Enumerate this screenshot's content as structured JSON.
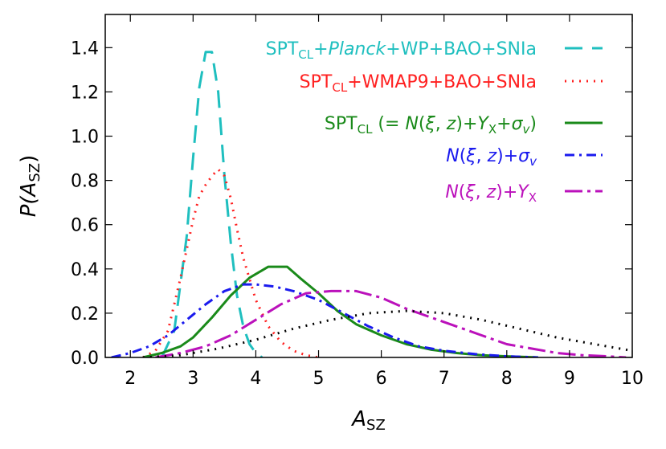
{
  "chart_data": {
    "type": "line",
    "xlabel": "A",
    "xlabel_sub": "SZ",
    "ylabel": "P(A",
    "ylabel_sub": "SZ",
    "ylabel_close": ")",
    "xlim": [
      1.6,
      10
    ],
    "ylim": [
      0,
      1.55
    ],
    "grid": false,
    "legend_position": "top-right",
    "x_ticks": [
      2,
      3,
      4,
      5,
      6,
      7,
      8,
      9,
      10
    ],
    "y_ticks": [
      0.0,
      0.2,
      0.4,
      0.6,
      0.8,
      1.0,
      1.2,
      1.4
    ],
    "x_tick_labels": [
      "2",
      "3",
      "4",
      "5",
      "6",
      "7",
      "8",
      "9",
      "10"
    ],
    "y_tick_labels": [
      "0.0",
      "0.2",
      "0.4",
      "0.6",
      "0.8",
      "1.0",
      "1.2",
      "1.4"
    ],
    "series": [
      {
        "name": "SPT_CL+Planck+WP+BAO+SNIa",
        "legend_parts": [
          {
            "t": "SPT",
            "s": "n"
          },
          {
            "t": "CL",
            "s": "sub"
          },
          {
            "t": "+",
            "s": "n"
          },
          {
            "t": "Planck",
            "s": "i"
          },
          {
            "t": "+WP+BAO+SNIa",
            "s": "n"
          }
        ],
        "color": "#1fbfbf",
        "dash": "22,12",
        "x": [
          2.5,
          2.7,
          2.9,
          3.0,
          3.1,
          3.2,
          3.3,
          3.4,
          3.5,
          3.6,
          3.7,
          3.8,
          3.9,
          4.0,
          4.1
        ],
        "y": [
          0.0,
          0.12,
          0.55,
          0.9,
          1.22,
          1.38,
          1.38,
          1.2,
          0.82,
          0.52,
          0.28,
          0.14,
          0.06,
          0.02,
          0.0
        ]
      },
      {
        "name": "SPT_CL+WMAP9+BAO+SNIa",
        "legend_parts": [
          {
            "t": "SPT",
            "s": "n"
          },
          {
            "t": "CL",
            "s": "sub"
          },
          {
            "t": "+WMAP9+BAO+SNIa",
            "s": "n"
          }
        ],
        "color": "#ff2020",
        "dash": "2,7",
        "x": [
          2.2,
          2.4,
          2.6,
          2.8,
          3.0,
          3.1,
          3.2,
          3.3,
          3.4,
          3.5,
          3.6,
          3.7,
          3.8,
          4.0,
          4.2,
          4.4,
          4.6,
          4.8,
          5.0
        ],
        "y": [
          0.0,
          0.03,
          0.12,
          0.36,
          0.62,
          0.73,
          0.78,
          0.82,
          0.85,
          0.82,
          0.72,
          0.58,
          0.45,
          0.26,
          0.14,
          0.07,
          0.03,
          0.01,
          0.0
        ]
      },
      {
        "name": "SPT_CL (= N(ξ, z)+Y_X+σ_v)",
        "legend_parts": [
          {
            "t": "SPT",
            "s": "n"
          },
          {
            "t": "CL",
            "s": "sub"
          },
          {
            "t": " (= ",
            "s": "n"
          },
          {
            "t": "N",
            "s": "i"
          },
          {
            "t": "(",
            "s": "n"
          },
          {
            "t": "ξ",
            "s": "i"
          },
          {
            "t": ", ",
            "s": "n"
          },
          {
            "t": "z",
            "s": "i"
          },
          {
            "t": ")+",
            "s": "n"
          },
          {
            "t": "Y",
            "s": "i"
          },
          {
            "t": "X",
            "s": "sub"
          },
          {
            "t": "+",
            "s": "n"
          },
          {
            "t": "σ",
            "s": "i"
          },
          {
            "t": "v",
            "s": "isub"
          },
          {
            "t": ")",
            "s": "n"
          }
        ],
        "color": "#1a8a1a",
        "dash": "",
        "x": [
          2.2,
          2.5,
          2.8,
          3.0,
          3.3,
          3.6,
          3.9,
          4.2,
          4.5,
          4.7,
          5.0,
          5.3,
          5.6,
          6.0,
          6.4,
          6.8,
          7.2,
          7.6,
          8.0,
          8.5
        ],
        "y": [
          0.0,
          0.02,
          0.05,
          0.09,
          0.18,
          0.28,
          0.36,
          0.41,
          0.41,
          0.36,
          0.29,
          0.21,
          0.15,
          0.1,
          0.06,
          0.035,
          0.02,
          0.01,
          0.005,
          0.0
        ]
      },
      {
        "name": "N(ξ, z)+σ_v",
        "legend_parts": [
          {
            "t": "N",
            "s": "i"
          },
          {
            "t": "(",
            "s": "n"
          },
          {
            "t": "ξ",
            "s": "i"
          },
          {
            "t": ", ",
            "s": "n"
          },
          {
            "t": "z",
            "s": "i"
          },
          {
            "t": ")+",
            "s": "n"
          },
          {
            "t": "σ",
            "s": "i"
          },
          {
            "t": "v",
            "s": "isub"
          }
        ],
        "color": "#1a1aee",
        "dash": "12,6,3,6",
        "x": [
          1.7,
          2.0,
          2.3,
          2.6,
          2.9,
          3.2,
          3.5,
          3.8,
          4.0,
          4.3,
          4.6,
          5.0,
          5.4,
          5.8,
          6.2,
          6.6,
          7.0,
          7.5,
          8.0,
          8.5
        ],
        "y": [
          0.0,
          0.02,
          0.05,
          0.1,
          0.17,
          0.24,
          0.3,
          0.33,
          0.33,
          0.32,
          0.3,
          0.26,
          0.2,
          0.14,
          0.09,
          0.05,
          0.03,
          0.015,
          0.005,
          0.0
        ]
      },
      {
        "name": "N(ξ, z)+Y_X",
        "legend_parts": [
          {
            "t": "N",
            "s": "i"
          },
          {
            "t": "(",
            "s": "n"
          },
          {
            "t": "ξ",
            "s": "i"
          },
          {
            "t": ", ",
            "s": "n"
          },
          {
            "t": "z",
            "s": "i"
          },
          {
            "t": ")+",
            "s": "n"
          },
          {
            "t": "Y",
            "s": "i"
          },
          {
            "t": "X",
            "s": "sub"
          }
        ],
        "color": "#bb11bb",
        "dash": "22,6,4,6",
        "x": [
          2.4,
          2.8,
          3.2,
          3.6,
          4.0,
          4.4,
          4.8,
          5.2,
          5.6,
          6.0,
          6.4,
          6.8,
          7.2,
          7.6,
          8.0,
          8.4,
          8.8,
          9.2,
          9.6,
          9.9
        ],
        "y": [
          0.0,
          0.02,
          0.05,
          0.1,
          0.17,
          0.24,
          0.29,
          0.3,
          0.3,
          0.27,
          0.22,
          0.18,
          0.14,
          0.1,
          0.06,
          0.04,
          0.02,
          0.01,
          0.005,
          0.0
        ]
      },
      {
        "name": "black dotted",
        "legend_parts": [],
        "color": "#000000",
        "dash": "2,7",
        "x": [
          2.2,
          2.8,
          3.4,
          4.0,
          4.6,
          5.2,
          5.8,
          6.4,
          7.0,
          7.6,
          8.2,
          8.8,
          9.4,
          10.0
        ],
        "y": [
          0.0,
          0.01,
          0.04,
          0.08,
          0.13,
          0.17,
          0.2,
          0.21,
          0.2,
          0.17,
          0.13,
          0.09,
          0.06,
          0.03
        ]
      }
    ]
  }
}
